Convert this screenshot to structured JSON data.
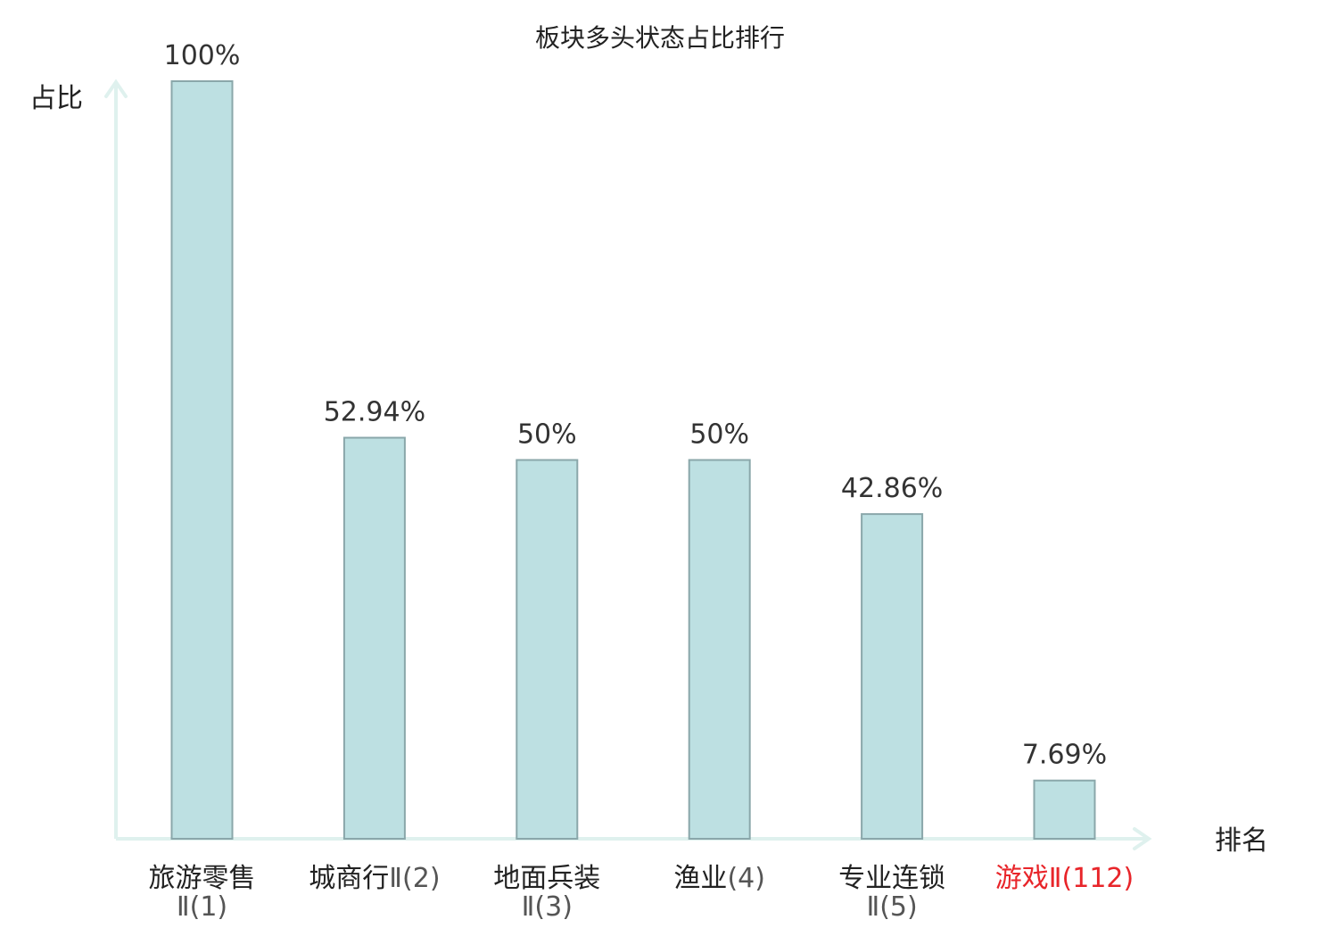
{
  "chart_data": {
    "type": "bar",
    "title": "板块多头状态占比排行",
    "xlabel": "排名",
    "ylabel": "占比",
    "ylim": [
      0,
      100
    ],
    "grid": false,
    "categories": [
      {
        "name": "旅游零售",
        "rank": "Ⅱ(1)",
        "highlight": false
      },
      {
        "name": "城商行",
        "rank": "Ⅱ(2)",
        "highlight": false
      },
      {
        "name": "地面兵装",
        "rank": "Ⅱ(3)",
        "highlight": false
      },
      {
        "name": "渔业",
        "rank": "(4)",
        "highlight": false
      },
      {
        "name": "专业连锁",
        "rank": "Ⅱ(5)",
        "highlight": false
      },
      {
        "name": "游戏",
        "rank": "Ⅱ(112)",
        "highlight": true
      }
    ],
    "values": [
      100,
      52.94,
      50,
      50,
      42.86,
      7.69
    ],
    "value_labels": [
      "100%",
      "52.94%",
      "50%",
      "50%",
      "42.86%",
      "7.69%"
    ]
  },
  "colors": {
    "bar_fill": "#bde0e2",
    "bar_stroke": "#8aa7aa",
    "axis": "#dff1ee",
    "text": "#222222",
    "label_dark": "#333333",
    "label_light": "#555555",
    "highlight": "#e8252a"
  }
}
